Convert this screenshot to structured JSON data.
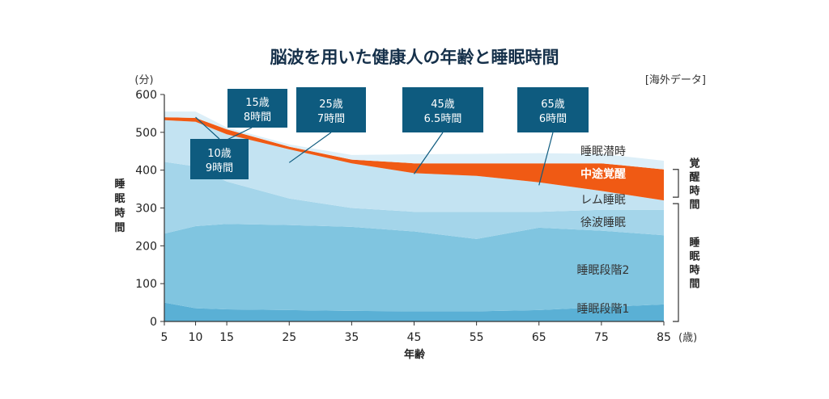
{
  "chart_data": {
    "type": "area",
    "title": "脳波を用いた健康人の年齢と睡眠時間",
    "note": "[海外データ]",
    "y_unit": "(分)",
    "x_unit": "(歳)",
    "xlabel": "年齢",
    "ylabel": "睡眠時間",
    "x": [
      5,
      10,
      15,
      25,
      35,
      45,
      55,
      65,
      75,
      85
    ],
    "x_ticks": [
      "5",
      "10",
      "15",
      "25",
      "35",
      "45",
      "55",
      "65",
      "75",
      "85"
    ],
    "y_ticks": [
      "0",
      "100",
      "200",
      "300",
      "400",
      "500",
      "600"
    ],
    "ylim": [
      0,
      600
    ],
    "boundaries": {
      "stage1_top": [
        50,
        35,
        32,
        30,
        28,
        27,
        27,
        30,
        38,
        45
      ],
      "stage2_top": [
        232,
        252,
        258,
        255,
        250,
        238,
        218,
        248,
        240,
        228
      ],
      "sws_top": [
        422,
        410,
        370,
        325,
        300,
        290,
        290,
        290,
        295,
        295
      ],
      "rem_top": [
        532,
        528,
        495,
        455,
        418,
        392,
        385,
        368,
        345,
        320
      ],
      "wake_top": [
        540,
        538,
        508,
        462,
        428,
        418,
        418,
        418,
        418,
        402
      ],
      "latency_top": [
        555,
        555,
        513,
        468,
        440,
        442,
        443,
        445,
        443,
        425
      ]
    },
    "series": [
      {
        "key": "stage1",
        "name": "睡眠段階1",
        "color": "#5ab0d5"
      },
      {
        "key": "stage2",
        "name": "睡眠段階2",
        "color": "#80c5e0"
      },
      {
        "key": "sws",
        "name": "徐波睡眠",
        "color": "#a4d5ea"
      },
      {
        "key": "rem",
        "name": "レム睡眠",
        "color": "#c3e3f2"
      },
      {
        "key": "wake",
        "name": "中途覚醒",
        "color": "#f05a14"
      },
      {
        "key": "latency",
        "name": "睡眠潜時",
        "color": "#ddeff8"
      }
    ],
    "callouts": [
      {
        "age_label": "10歳",
        "time_label": "9時間",
        "age": 10,
        "value": 540
      },
      {
        "age_label": "15歳",
        "time_label": "8時間",
        "age": 15,
        "value": 480
      },
      {
        "age_label": "25歳",
        "time_label": "7時間",
        "age": 25,
        "value": 420
      },
      {
        "age_label": "45歳",
        "time_label": "6.5時間",
        "age": 45,
        "value": 390
      },
      {
        "age_label": "65歳",
        "time_label": "6時間",
        "age": 65,
        "value": 360
      }
    ],
    "brackets": [
      {
        "label": "覚醒時間",
        "from": 320,
        "to": 402
      },
      {
        "label": "睡眠時間",
        "from": 0,
        "to": 320
      }
    ],
    "callout_color": "#0e5b7f",
    "axis_color": "#333333"
  }
}
